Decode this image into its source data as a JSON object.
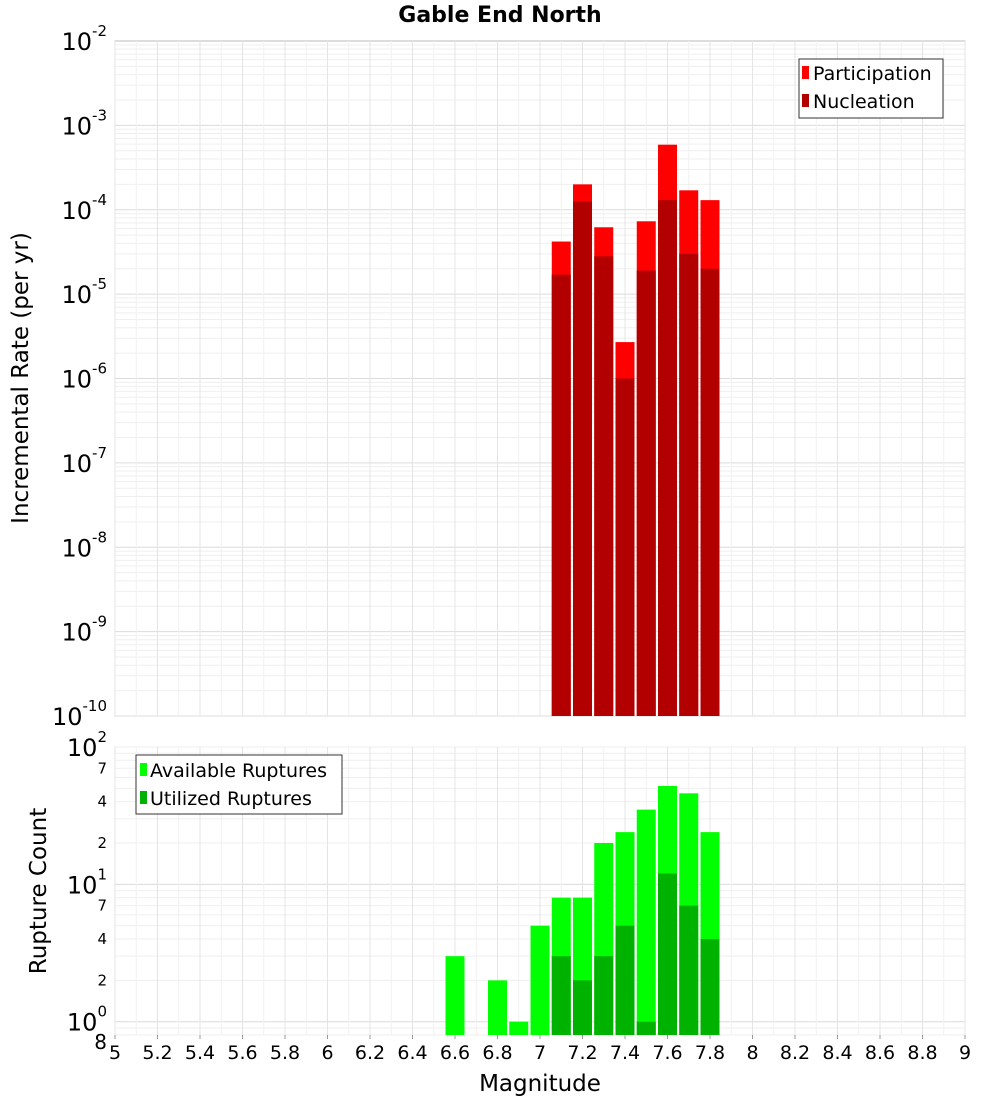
{
  "chart_data": [
    {
      "type": "bar",
      "title": "Gable End North",
      "ylabel": "Incremental Rate (per yr)",
      "xlabel": "",
      "yscale": "log",
      "ylim": [
        1e-10,
        0.01
      ],
      "xlim": [
        5,
        9
      ],
      "y_ticks": [
        {
          "mant": "10",
          "exp": "-10",
          "value": 1e-10
        },
        {
          "mant": "10",
          "exp": "-9",
          "value": 1e-09
        },
        {
          "mant": "10",
          "exp": "-8",
          "value": 1e-08
        },
        {
          "mant": "10",
          "exp": "-7",
          "value": 1e-07
        },
        {
          "mant": "10",
          "exp": "-6",
          "value": 1e-06
        },
        {
          "mant": "10",
          "exp": "-5",
          "value": 1e-05
        },
        {
          "mant": "10",
          "exp": "-4",
          "value": 0.0001
        },
        {
          "mant": "10",
          "exp": "-3",
          "value": 0.001
        },
        {
          "mant": "10",
          "exp": "-2",
          "value": 0.01
        }
      ],
      "grid": true,
      "legend_position": "top-right",
      "x": [
        7.1,
        7.2,
        7.3,
        7.4,
        7.5,
        7.6,
        7.7,
        7.8
      ],
      "series": [
        {
          "name": "Participation",
          "color": "#ff0000",
          "values": [
            4.2e-05,
            0.0002,
            6.2e-05,
            2.7e-06,
            7.3e-05,
            0.00059,
            0.00017,
            0.00013
          ]
        },
        {
          "name": "Nucleation",
          "color": "#b20000",
          "values": [
            1.7e-05,
            0.000125,
            2.8e-05,
            1e-06,
            1.9e-05,
            0.00013,
            3e-05,
            2e-05
          ]
        }
      ]
    },
    {
      "type": "bar",
      "title": "",
      "ylabel": "Rupture Count",
      "xlabel": "Magnitude",
      "yscale": "log",
      "ylim": [
        0.8,
        100
      ],
      "xlim": [
        5,
        9
      ],
      "x_ticks": [
        "5",
        "5.2",
        "5.4",
        "5.6",
        "5.8",
        "6",
        "6.2",
        "6.4",
        "6.6",
        "6.8",
        "7",
        "7.2",
        "7.4",
        "7.6",
        "7.8",
        "8",
        "8.2",
        "8.4",
        "8.6",
        "8.8",
        "9"
      ],
      "y_ticks": [
        {
          "mant": "10",
          "exp": "0",
          "value": 1
        },
        {
          "mant": "10",
          "exp": "1",
          "value": 10
        },
        {
          "mant": "10",
          "exp": "2",
          "value": 100
        }
      ],
      "y_minor_ticks": [
        {
          "label": "8",
          "value": 0.8
        },
        {
          "label": "2",
          "value": 2
        },
        {
          "label": "4",
          "value": 4
        },
        {
          "label": "7",
          "value": 7
        },
        {
          "label": "2",
          "value": 20
        },
        {
          "label": "4",
          "value": 40
        },
        {
          "label": "7",
          "value": 70
        }
      ],
      "grid": true,
      "legend_position": "top-left",
      "x": [
        6.6,
        6.8,
        6.9,
        7.0,
        7.1,
        7.2,
        7.3,
        7.4,
        7.5,
        7.6,
        7.7,
        7.8
      ],
      "series": [
        {
          "name": "Available Ruptures",
          "color": "#00ff00",
          "values": [
            3,
            2,
            1,
            5,
            8,
            8,
            20,
            24,
            35,
            52,
            46,
            24
          ]
        },
        {
          "name": "Utilized Ruptures",
          "color": "#00b200",
          "values": [
            null,
            null,
            null,
            null,
            3,
            2,
            3,
            5,
            1,
            12,
            7,
            4
          ]
        }
      ]
    }
  ]
}
